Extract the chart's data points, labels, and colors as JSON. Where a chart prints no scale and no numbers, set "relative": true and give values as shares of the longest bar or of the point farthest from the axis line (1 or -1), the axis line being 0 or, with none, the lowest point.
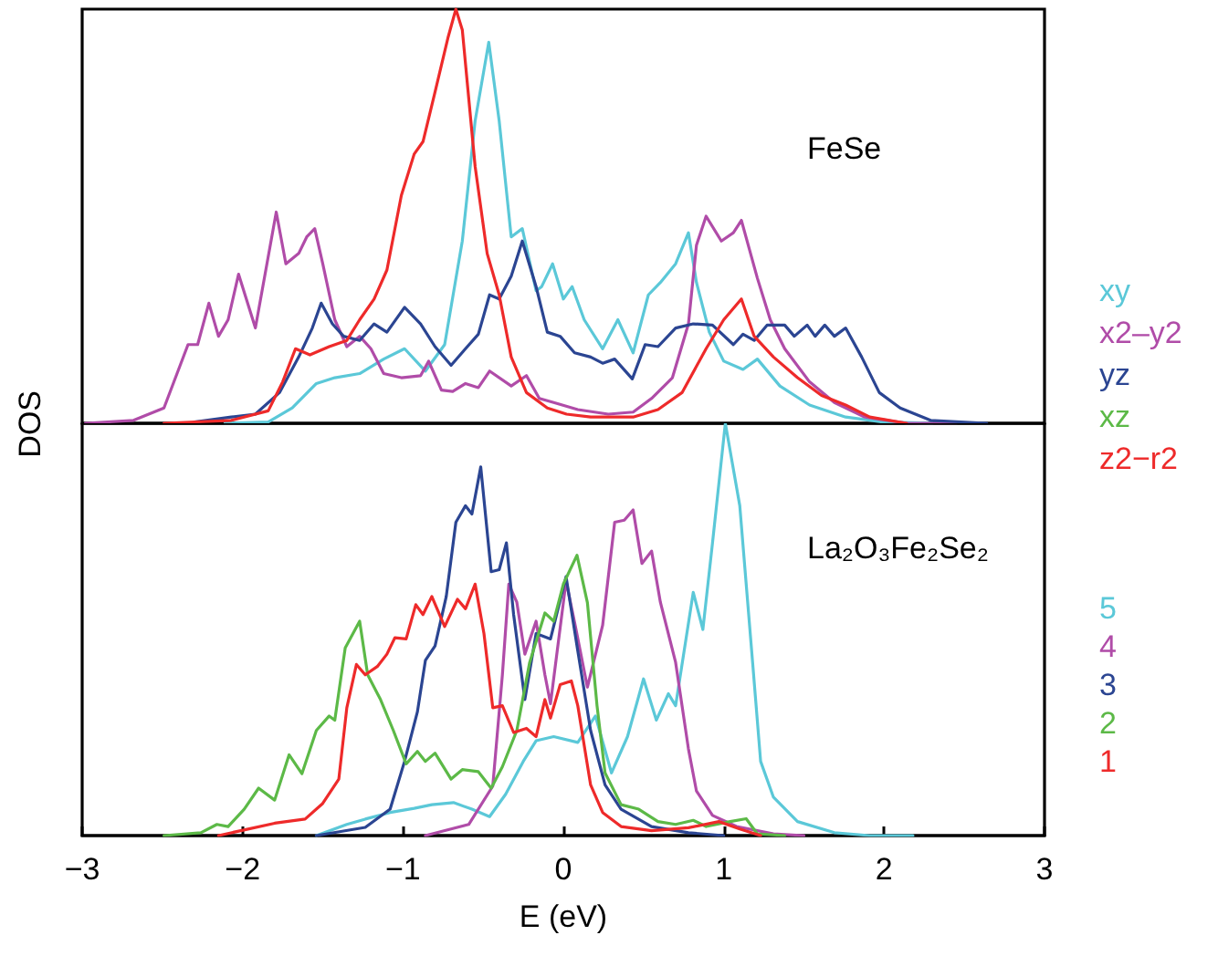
{
  "chart_data": [
    {
      "type": "line",
      "title": "FeSe",
      "ylabel": "DOS",
      "relative": true,
      "xlim": [
        -3,
        3
      ],
      "legend": "right",
      "series": [
        {
          "name": "xy",
          "color": "#5bc8d8",
          "x": [
            -2.11,
            -1.84,
            -1.69,
            -1.54,
            -1.425,
            -1.27,
            -1.12,
            -0.99,
            -0.86,
            -0.74,
            -0.63,
            -0.55,
            -0.465,
            -0.4,
            -0.325,
            -0.256,
            -0.17,
            -0.135,
            -0.067,
            0.0,
            0.055,
            0.13,
            0.245,
            0.34,
            0.435,
            0.53,
            0.605,
            0.7,
            0.78,
            0.83,
            0.91,
            1.0,
            1.12,
            1.21,
            1.35,
            1.535,
            1.76,
            1.99,
            2.3
          ],
          "values": [
            0,
            0.003,
            0.037,
            0.096,
            0.11,
            0.12,
            0.155,
            0.18,
            0.126,
            0.19,
            0.44,
            0.73,
            0.92,
            0.73,
            0.45,
            0.47,
            0.32,
            0.33,
            0.385,
            0.3,
            0.33,
            0.25,
            0.18,
            0.25,
            0.17,
            0.31,
            0.34,
            0.385,
            0.46,
            0.34,
            0.22,
            0.15,
            0.13,
            0.155,
            0.09,
            0.044,
            0.015,
            0.003,
            0
          ]
        },
        {
          "name": "x2–y2",
          "color": "#b04ca8",
          "x": [
            -2.98,
            -2.68,
            -2.49,
            -2.34,
            -2.28,
            -2.21,
            -2.15,
            -2.09,
            -2.025,
            -1.92,
            -1.79,
            -1.73,
            -1.65,
            -1.6,
            -1.55,
            -1.5,
            -1.425,
            -1.35,
            -1.27,
            -1.2,
            -1.12,
            -1.01,
            -0.89,
            -0.84,
            -0.76,
            -0.69,
            -0.61,
            -0.53,
            -0.46,
            -0.325,
            -0.23,
            -0.15,
            -0.06,
            0.09,
            0.28,
            0.435,
            0.55,
            0.68,
            0.78,
            0.83,
            0.89,
            0.985,
            1.06,
            1.11,
            1.21,
            1.29,
            1.38,
            1.535,
            1.69,
            1.88,
            2.14,
            2.45
          ],
          "values": [
            0,
            0.007,
            0.037,
            0.19,
            0.19,
            0.29,
            0.21,
            0.25,
            0.36,
            0.23,
            0.51,
            0.385,
            0.41,
            0.45,
            0.47,
            0.385,
            0.25,
            0.185,
            0.21,
            0.18,
            0.12,
            0.11,
            0.115,
            0.15,
            0.08,
            0.077,
            0.096,
            0.086,
            0.126,
            0.09,
            0.115,
            0.06,
            0.05,
            0.033,
            0.022,
            0.027,
            0.06,
            0.11,
            0.24,
            0.43,
            0.5,
            0.44,
            0.46,
            0.49,
            0.35,
            0.25,
            0.18,
            0.1,
            0.05,
            0.015,
            0,
            0
          ]
        },
        {
          "name": "yz",
          "color": "#2b4592",
          "x": [
            -2.3,
            -2.07,
            -1.92,
            -1.77,
            -1.65,
            -1.565,
            -1.51,
            -1.44,
            -1.37,
            -1.27,
            -1.18,
            -1.1,
            -0.99,
            -0.89,
            -0.8,
            -0.7,
            -0.61,
            -0.53,
            -0.46,
            -0.4,
            -0.325,
            -0.256,
            -0.17,
            -0.1,
            -0.02,
            0.07,
            0.17,
            0.245,
            0.32,
            0.43,
            0.51,
            0.59,
            0.7,
            0.81,
            0.93,
            1.06,
            1.12,
            1.19,
            1.27,
            1.38,
            1.44,
            1.52,
            1.57,
            1.63,
            1.69,
            1.76,
            1.86,
            1.97,
            2.1,
            2.29,
            2.64
          ],
          "values": [
            0.003,
            0.015,
            0.022,
            0.074,
            0.16,
            0.23,
            0.29,
            0.24,
            0.21,
            0.2,
            0.24,
            0.22,
            0.28,
            0.24,
            0.185,
            0.14,
            0.18,
            0.215,
            0.31,
            0.3,
            0.355,
            0.44,
            0.33,
            0.22,
            0.21,
            0.17,
            0.16,
            0.145,
            0.155,
            0.107,
            0.19,
            0.185,
            0.23,
            0.24,
            0.237,
            0.19,
            0.215,
            0.2,
            0.237,
            0.237,
            0.21,
            0.237,
            0.21,
            0.237,
            0.21,
            0.23,
            0.16,
            0.074,
            0.037,
            0.007,
            0
          ]
        },
        {
          "name": "xz",
          "color": "#5cb947"
        },
        {
          "name": "z2−r2",
          "color": "#ee2a2a",
          "x": [
            -2.49,
            -2.07,
            -1.84,
            -1.75,
            -1.67,
            -1.58,
            -1.46,
            -1.35,
            -1.27,
            -1.18,
            -1.1,
            -1.01,
            -0.93,
            -0.875,
            -0.8,
            -0.72,
            -0.67,
            -0.63,
            -0.55,
            -0.475,
            -0.4,
            -0.325,
            -0.23,
            -0.1,
            0.02,
            0.17,
            0.435,
            0.59,
            0.74,
            0.89,
            1.0,
            1.11,
            1.19,
            1.31,
            1.46,
            1.61,
            1.76,
            1.91,
            2.14
          ],
          "values": [
            0,
            0.007,
            0.03,
            0.1,
            0.18,
            0.165,
            0.185,
            0.2,
            0.25,
            0.3,
            0.37,
            0.55,
            0.65,
            0.68,
            0.8,
            0.93,
            1,
            0.95,
            0.62,
            0.41,
            0.31,
            0.16,
            0.074,
            0.037,
            0.022,
            0.015,
            0.015,
            0.033,
            0.074,
            0.18,
            0.25,
            0.3,
            0.21,
            0.16,
            0.11,
            0.067,
            0.044,
            0.015,
            0
          ]
        }
      ]
    },
    {
      "type": "line",
      "title": "La₂O₃Fe₂Se₂",
      "xlabel": "E (eV)",
      "relative": true,
      "xlim": [
        -3,
        3
      ],
      "xticks": [
        {
          "value": -3,
          "label": "−3"
        },
        {
          "value": -2,
          "label": "−2"
        },
        {
          "value": -1,
          "label": "−1"
        },
        0,
        1,
        2,
        3
      ],
      "legend": "right",
      "series": [
        {
          "name": "5",
          "color": "#5bc8d8",
          "x": [
            -1.54,
            -1.35,
            -1.235,
            -1.08,
            -0.93,
            -0.82,
            -0.685,
            -0.57,
            -0.46,
            -0.36,
            -0.25,
            -0.17,
            -0.06,
            0.09,
            0.2,
            0.3,
            0.4,
            0.5,
            0.58,
            0.655,
            0.7,
            0.81,
            0.87,
            0.93,
            1.01,
            1.1,
            1.18,
            1.23,
            1.31,
            1.46,
            1.69,
            1.91,
            2.18
          ],
          "values": [
            0,
            0.027,
            0.04,
            0.056,
            0.066,
            0.075,
            0.08,
            0.064,
            0.046,
            0.1,
            0.18,
            0.23,
            0.24,
            0.226,
            0.29,
            0.152,
            0.24,
            0.38,
            0.28,
            0.344,
            0.315,
            0.59,
            0.5,
            0.71,
            1,
            0.8,
            0.42,
            0.18,
            0.093,
            0.034,
            0.007,
            0,
            0
          ]
        },
        {
          "name": "4",
          "color": "#b04ca8",
          "x": [
            -0.86,
            -0.59,
            -0.44,
            -0.38,
            -0.34,
            -0.29,
            -0.24,
            -0.17,
            -0.115,
            -0.08,
            0.017,
            0.074,
            0.15,
            0.245,
            0.32,
            0.38,
            0.435,
            0.49,
            0.55,
            0.605,
            0.7,
            0.78,
            0.83,
            0.93,
            1.08,
            1.31,
            1.5
          ],
          "values": [
            0,
            0.027,
            0.12,
            0.39,
            0.61,
            0.566,
            0.44,
            0.52,
            0.39,
            0.32,
            0.617,
            0.51,
            0.36,
            0.51,
            0.76,
            0.765,
            0.79,
            0.66,
            0.69,
            0.566,
            0.42,
            0.21,
            0.108,
            0.049,
            0.022,
            0.004,
            0
          ]
        },
        {
          "name": "3",
          "color": "#2b4592",
          "x": [
            -1.54,
            -1.235,
            -1.08,
            -0.99,
            -0.91,
            -0.86,
            -0.8,
            -0.73,
            -0.67,
            -0.61,
            -0.57,
            -0.515,
            -0.45,
            -0.4,
            -0.355,
            -0.31,
            -0.24,
            -0.17,
            -0.08,
            0.017,
            0.09,
            0.17,
            0.26,
            0.36,
            0.55,
            0.78,
            1.0
          ],
          "values": [
            0,
            0.02,
            0.064,
            0.18,
            0.3,
            0.425,
            0.46,
            0.58,
            0.76,
            0.8,
            0.78,
            0.894,
            0.64,
            0.645,
            0.71,
            0.536,
            0.33,
            0.49,
            0.477,
            0.628,
            0.448,
            0.255,
            0.123,
            0.064,
            0.022,
            0.007,
            0
          ]
        },
        {
          "name": "2",
          "color": "#5cb947",
          "x": [
            -2.49,
            -2.26,
            -2.16,
            -2.09,
            -1.99,
            -1.9,
            -1.8,
            -1.71,
            -1.63,
            -1.54,
            -1.46,
            -1.425,
            -1.36,
            -1.27,
            -1.22,
            -1.14,
            -1.06,
            -0.98,
            -0.91,
            -0.86,
            -0.8,
            -0.7,
            -0.63,
            -0.53,
            -0.45,
            -0.38,
            -0.29,
            -0.21,
            -0.115,
            -0.06,
            0.0,
            0.085,
            0.15,
            0.21,
            0.26,
            0.36,
            0.47,
            0.59,
            0.7,
            0.81,
            0.89,
            1.04,
            1.14,
            1.21,
            1.38
          ],
          "values": [
            0,
            0.007,
            0.027,
            0.022,
            0.064,
            0.115,
            0.086,
            0.196,
            0.15,
            0.255,
            0.29,
            0.28,
            0.455,
            0.52,
            0.39,
            0.33,
            0.255,
            0.174,
            0.204,
            0.18,
            0.2,
            0.137,
            0.16,
            0.155,
            0.115,
            0.167,
            0.255,
            0.42,
            0.54,
            0.52,
            0.61,
            0.68,
            0.565,
            0.315,
            0.152,
            0.075,
            0.064,
            0.034,
            0.027,
            0.037,
            0.022,
            0.034,
            0.041,
            0.004,
            0
          ]
        },
        {
          "name": "1",
          "color": "#ee2a2a",
          "x": [
            -2.15,
            -1.8,
            -1.61,
            -1.5,
            -1.4,
            -1.35,
            -1.29,
            -1.235,
            -1.16,
            -1.1,
            -1.05,
            -0.98,
            -0.92,
            -0.875,
            -0.82,
            -0.74,
            -0.66,
            -0.61,
            -0.55,
            -0.495,
            -0.44,
            -0.38,
            -0.31,
            -0.23,
            -0.17,
            -0.115,
            -0.08,
            -0.02,
            0.05,
            0.09,
            0.17,
            0.245,
            0.36,
            0.55,
            0.78,
            0.97,
            1.1,
            1.23
          ],
          "values": [
            0,
            0.03,
            0.04,
            0.078,
            0.137,
            0.31,
            0.415,
            0.39,
            0.41,
            0.44,
            0.48,
            0.477,
            0.56,
            0.536,
            0.58,
            0.507,
            0.573,
            0.55,
            0.61,
            0.49,
            0.31,
            0.315,
            0.25,
            0.26,
            0.24,
            0.33,
            0.285,
            0.366,
            0.375,
            0.315,
            0.123,
            0.056,
            0.022,
            0.012,
            0.019,
            0.034,
            0.016,
            0
          ]
        }
      ]
    }
  ]
}
